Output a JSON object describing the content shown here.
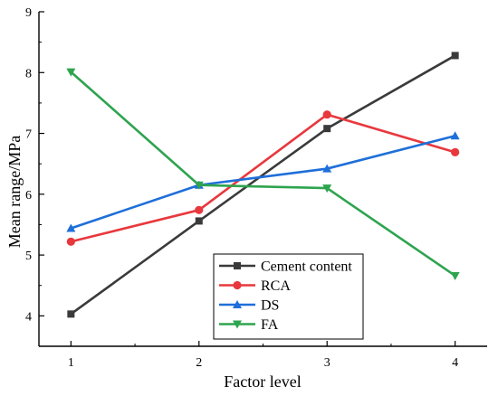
{
  "chart_data": {
    "type": "line",
    "title": "",
    "xlabel": "Factor level",
    "ylabel": "Mean range/MPa",
    "x": [
      1,
      2,
      3,
      4
    ],
    "xlim": [
      0.75,
      4.25
    ],
    "ylim": [
      3.5,
      9
    ],
    "xticks": [
      "1",
      "2",
      "3",
      "4"
    ],
    "yticks": [
      "4",
      "5",
      "6",
      "7",
      "8",
      "9"
    ],
    "grid": false,
    "legend_position": "bottom-center",
    "series": [
      {
        "name": "Cement content",
        "values": [
          4.03,
          5.56,
          7.08,
          8.28
        ],
        "color": "#3a3a3a",
        "marker": "square"
      },
      {
        "name": "RCA",
        "values": [
          5.22,
          5.74,
          7.31,
          6.69
        ],
        "color": "#e8383d",
        "marker": "circle"
      },
      {
        "name": "DS",
        "values": [
          5.44,
          6.15,
          6.42,
          6.96
        ],
        "color": "#1e6fd9",
        "marker": "triangle-up"
      },
      {
        "name": "FA",
        "values": [
          8.01,
          6.15,
          6.1,
          4.66
        ],
        "color": "#2ea44f",
        "marker": "triangle-down"
      }
    ]
  }
}
